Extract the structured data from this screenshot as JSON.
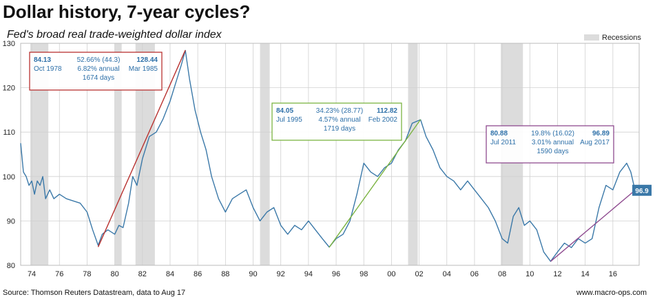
{
  "chart_data": {
    "type": "line",
    "title": "Dollar history, 7-year cycles?",
    "subtitle": "Fed's broad real trade-weighted dollar index",
    "ylim": [
      80,
      130
    ],
    "yticks": [
      "80",
      "90",
      "100",
      "110",
      "120",
      "130"
    ],
    "xlim": [
      1973.2,
      2017.9
    ],
    "xticks": [
      {
        "x": 1974,
        "label": "74"
      },
      {
        "x": 1976,
        "label": "76"
      },
      {
        "x": 1978,
        "label": "78"
      },
      {
        "x": 1980,
        "label": "80"
      },
      {
        "x": 1982,
        "label": "82"
      },
      {
        "x": 1984,
        "label": "84"
      },
      {
        "x": 1986,
        "label": "86"
      },
      {
        "x": 1988,
        "label": "88"
      },
      {
        "x": 1990,
        "label": "90"
      },
      {
        "x": 1992,
        "label": "92"
      },
      {
        "x": 1994,
        "label": "94"
      },
      {
        "x": 1996,
        "label": "96"
      },
      {
        "x": 1998,
        "label": "98"
      },
      {
        "x": 2000,
        "label": "00"
      },
      {
        "x": 2002,
        "label": "02"
      },
      {
        "x": 2004,
        "label": "04"
      },
      {
        "x": 2006,
        "label": "06"
      },
      {
        "x": 2008,
        "label": "08"
      },
      {
        "x": 2010,
        "label": "10"
      },
      {
        "x": 2012,
        "label": "12"
      },
      {
        "x": 2014,
        "label": "14"
      },
      {
        "x": 2016,
        "label": "16"
      }
    ],
    "legend": {
      "label": "Recessions",
      "position": "top-right",
      "color": "#dcdcdc"
    },
    "recessions": [
      [
        1973.9,
        1975.2
      ],
      [
        1980.0,
        1980.5
      ],
      [
        1981.5,
        1982.9
      ],
      [
        1990.5,
        1991.2
      ],
      [
        2001.2,
        2001.9
      ],
      [
        2007.9,
        2009.5
      ]
    ],
    "series": [
      {
        "color": "#3a78a8",
        "points": [
          [
            1973.2,
            107.5
          ],
          [
            1973.4,
            101
          ],
          [
            1973.6,
            100
          ],
          [
            1973.8,
            98
          ],
          [
            1974.0,
            99
          ],
          [
            1974.2,
            96
          ],
          [
            1974.4,
            99
          ],
          [
            1974.6,
            98
          ],
          [
            1974.8,
            100
          ],
          [
            1975.0,
            95
          ],
          [
            1975.3,
            97
          ],
          [
            1975.6,
            95
          ],
          [
            1976.0,
            96
          ],
          [
            1976.5,
            95
          ],
          [
            1977.0,
            94.5
          ],
          [
            1977.5,
            94
          ],
          [
            1978.0,
            92
          ],
          [
            1978.4,
            88
          ],
          [
            1978.8,
            84.5
          ],
          [
            1979.1,
            87
          ],
          [
            1979.5,
            88
          ],
          [
            1980.0,
            87
          ],
          [
            1980.3,
            89
          ],
          [
            1980.6,
            88.5
          ],
          [
            1981.0,
            94
          ],
          [
            1981.3,
            100
          ],
          [
            1981.6,
            98
          ],
          [
            1982.0,
            104
          ],
          [
            1982.5,
            109
          ],
          [
            1983.0,
            110
          ],
          [
            1983.5,
            113
          ],
          [
            1984.0,
            117
          ],
          [
            1984.4,
            121
          ],
          [
            1984.8,
            125
          ],
          [
            1985.1,
            128.4
          ],
          [
            1985.4,
            122
          ],
          [
            1985.8,
            115
          ],
          [
            1986.2,
            110
          ],
          [
            1986.6,
            106
          ],
          [
            1987.0,
            100
          ],
          [
            1987.5,
            95
          ],
          [
            1988.0,
            92
          ],
          [
            1988.5,
            95
          ],
          [
            1989.0,
            96
          ],
          [
            1989.5,
            97
          ],
          [
            1990.0,
            93
          ],
          [
            1990.5,
            90
          ],
          [
            1991.0,
            92
          ],
          [
            1991.5,
            93
          ],
          [
            1992.0,
            89
          ],
          [
            1992.5,
            87
          ],
          [
            1993.0,
            89
          ],
          [
            1993.5,
            88
          ],
          [
            1994.0,
            90
          ],
          [
            1994.5,
            88
          ],
          [
            1995.0,
            86
          ],
          [
            1995.5,
            84.1
          ],
          [
            1996.0,
            86
          ],
          [
            1996.5,
            87
          ],
          [
            1997.0,
            90
          ],
          [
            1997.5,
            96
          ],
          [
            1998.0,
            103
          ],
          [
            1998.5,
            101
          ],
          [
            1999.0,
            100
          ],
          [
            1999.5,
            102
          ],
          [
            2000.0,
            103
          ],
          [
            2000.5,
            106
          ],
          [
            2001.0,
            108
          ],
          [
            2001.5,
            112
          ],
          [
            2002.1,
            112.8
          ],
          [
            2002.5,
            109
          ],
          [
            2003.0,
            106
          ],
          [
            2003.5,
            102
          ],
          [
            2004.0,
            100
          ],
          [
            2004.5,
            99
          ],
          [
            2005.0,
            97
          ],
          [
            2005.5,
            99
          ],
          [
            2006.0,
            97
          ],
          [
            2006.5,
            95
          ],
          [
            2007.0,
            93
          ],
          [
            2007.5,
            90
          ],
          [
            2008.0,
            86
          ],
          [
            2008.4,
            85
          ],
          [
            2008.8,
            91
          ],
          [
            2009.2,
            93
          ],
          [
            2009.6,
            89
          ],
          [
            2010.0,
            90
          ],
          [
            2010.5,
            88
          ],
          [
            2011.0,
            83
          ],
          [
            2011.5,
            80.9
          ],
          [
            2012.0,
            83
          ],
          [
            2012.5,
            85
          ],
          [
            2013.0,
            84
          ],
          [
            2013.5,
            86
          ],
          [
            2014.0,
            85
          ],
          [
            2014.5,
            86
          ],
          [
            2015.0,
            93
          ],
          [
            2015.5,
            98
          ],
          [
            2016.0,
            97
          ],
          [
            2016.5,
            101
          ],
          [
            2017.0,
            103
          ],
          [
            2017.3,
            101
          ],
          [
            2017.6,
            96.9
          ]
        ]
      }
    ],
    "trendlines": [
      {
        "x1": 1978.8,
        "y1": 84.13,
        "x2": 1985.1,
        "y2": 128.44,
        "color": "#b8312f"
      },
      {
        "x1": 1995.5,
        "y1": 84.05,
        "x2": 2002.1,
        "y2": 112.82,
        "color": "#7bb341"
      },
      {
        "x1": 2011.5,
        "y1": 80.88,
        "x2": 2017.6,
        "y2": 96.89,
        "color": "#8e4a8f"
      }
    ],
    "annotations": [
      {
        "id": "c1",
        "border": "#b8312f",
        "start_value": "84.13",
        "start_date": "Oct 1978",
        "change": "52.66% (44.3)",
        "annual": "6.82% annual",
        "days": "1674 days",
        "end_value": "128.44",
        "end_date": "Mar 1985"
      },
      {
        "id": "c2",
        "border": "#7bb341",
        "start_value": "84.05",
        "start_date": "Jul 1995",
        "change": "34.23% (28.77)",
        "annual": "4.57% annual",
        "days": "1719 days",
        "end_value": "112.82",
        "end_date": "Feb 2002"
      },
      {
        "id": "c3",
        "border": "#8e4a8f",
        "start_value": "80.88",
        "start_date": "Jul 2011",
        "change": "19.8% (16.02)",
        "annual": "3.01% annual",
        "days": "1590 days",
        "end_value": "96.89",
        "end_date": "Aug 2017"
      }
    ],
    "last_value_label": "96.9"
  },
  "footer": {
    "source": "Source: Thomson Reuters Datastream, data to Aug 17",
    "site": "www.macro-ops.com"
  }
}
